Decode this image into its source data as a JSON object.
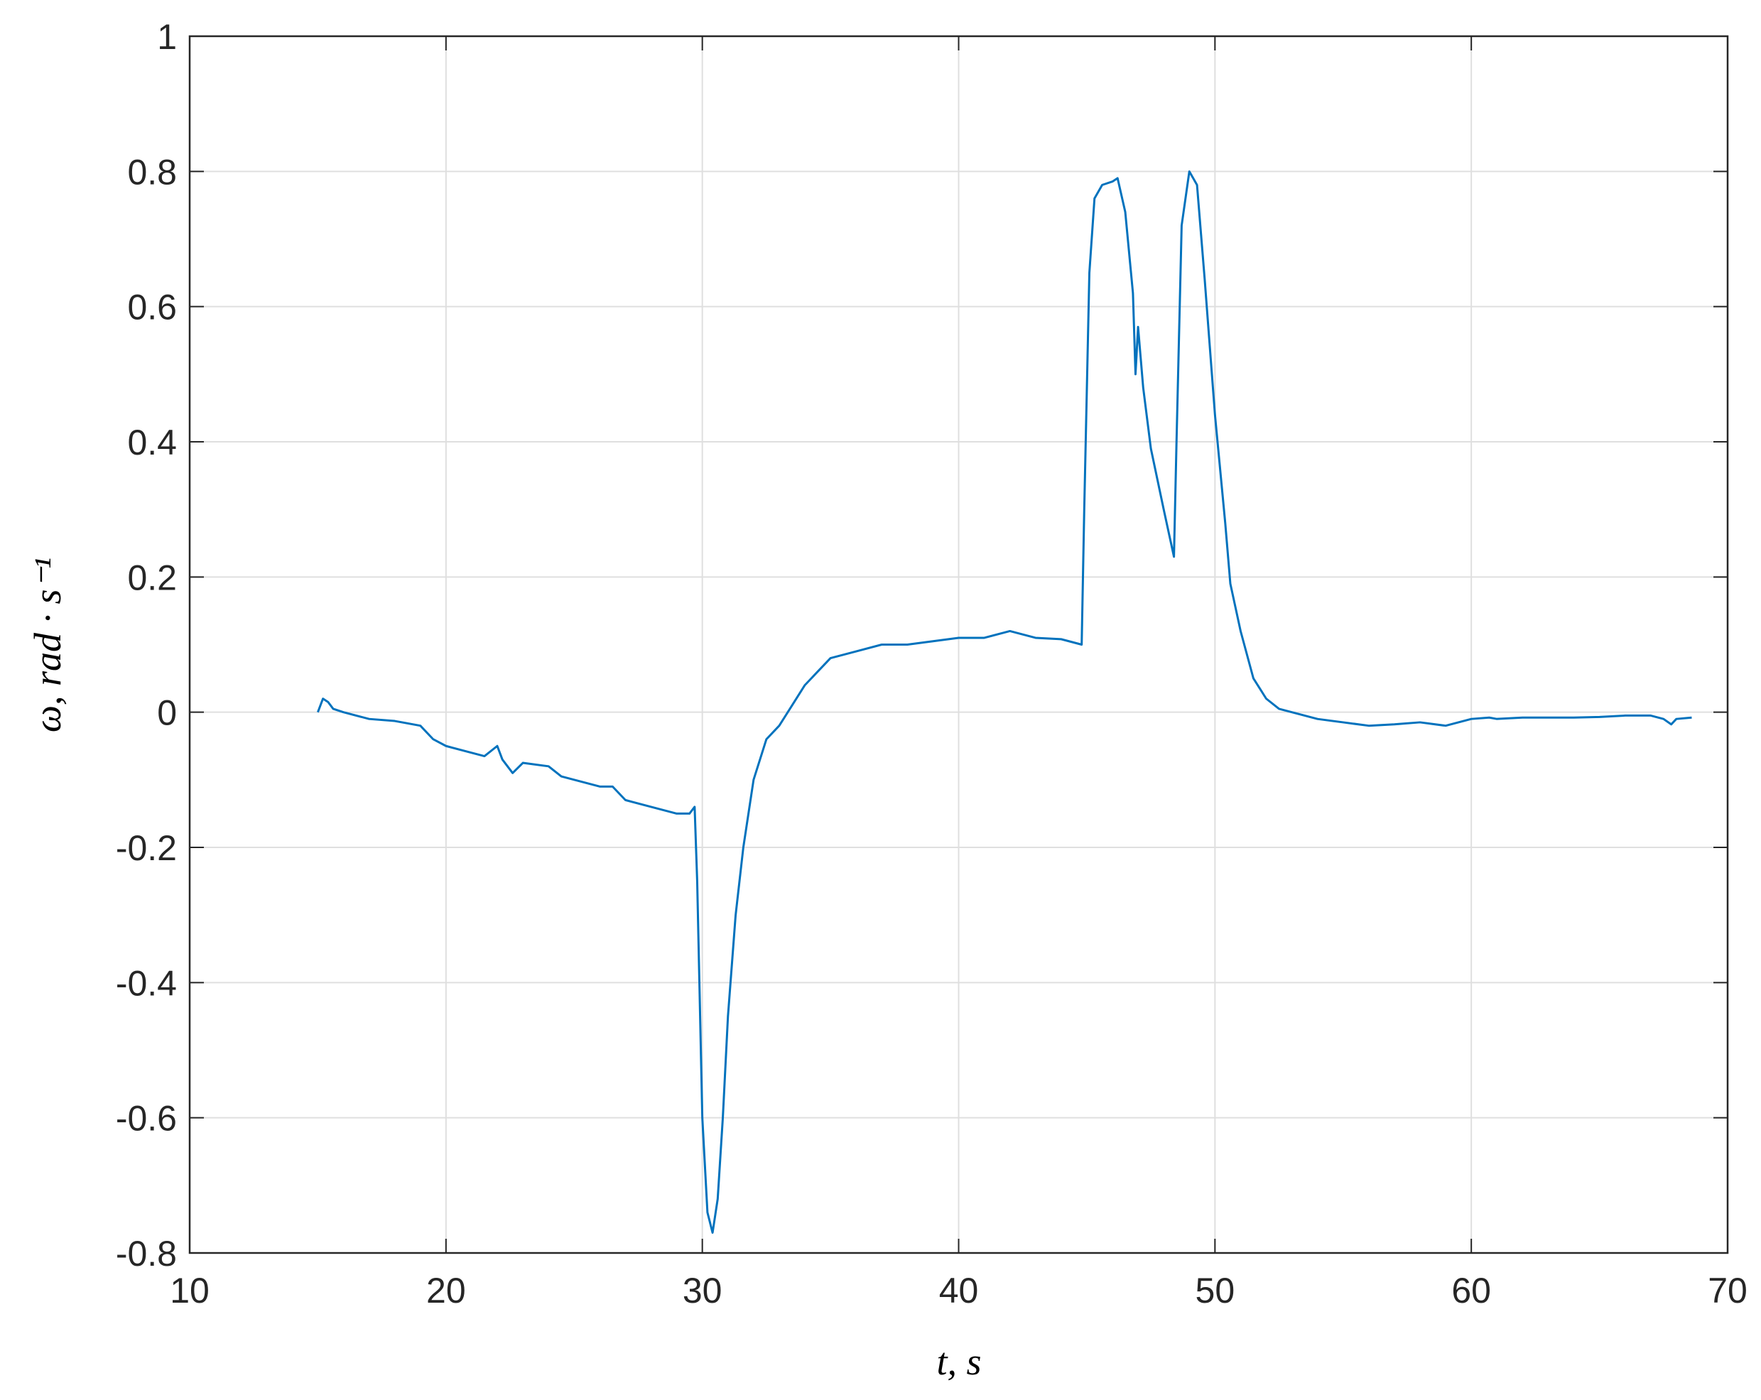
{
  "chart_data": {
    "type": "line",
    "xlabel": "t, s",
    "ylabel": "ω, rad · s⁻¹",
    "xlim": [
      10,
      70
    ],
    "xticks": [
      10,
      20,
      30,
      40,
      50,
      60,
      70
    ],
    "ylim": [
      -0.8,
      1
    ],
    "yticks": [
      -0.8,
      -0.6,
      -0.4,
      -0.2,
      0,
      0.2,
      0.4,
      0.6,
      0.8,
      1
    ],
    "grid": true,
    "series": [
      {
        "color": "#0072bd",
        "x": [
          15,
          15.2,
          15.4,
          15.6,
          16,
          17,
          18,
          19,
          19.5,
          20,
          21,
          21.5,
          22,
          22.2,
          22.6,
          23,
          24,
          24.5,
          25,
          26,
          26.5,
          27,
          28,
          29,
          29.5,
          29.7,
          29.8,
          30,
          30.2,
          30.4,
          30.6,
          30.8,
          31,
          31.3,
          31.6,
          32,
          32.5,
          33,
          33.5,
          34,
          34.5,
          35,
          36,
          37,
          38,
          39,
          40,
          41,
          42,
          43,
          44,
          44.8,
          44.9,
          45.1,
          45.3,
          45.6,
          46,
          46.2,
          46.5,
          46.8,
          46.9,
          47,
          47.2,
          47.5,
          48,
          48.4,
          48.5,
          48.7,
          49,
          49.3,
          49.6,
          50,
          50.4,
          50.6,
          51,
          51.5,
          52,
          52.5,
          53,
          54,
          55,
          56,
          57,
          58,
          59,
          60,
          60.7,
          61,
          62,
          63,
          64,
          65,
          66,
          67,
          67.5,
          67.8,
          68,
          68.6
        ],
        "values": [
          0,
          0.02,
          0.015,
          0.005,
          0,
          -0.01,
          -0.013,
          -0.02,
          -0.04,
          -0.05,
          -0.06,
          -0.065,
          -0.05,
          -0.07,
          -0.09,
          -0.075,
          -0.08,
          -0.095,
          -0.1,
          -0.11,
          -0.11,
          -0.13,
          -0.14,
          -0.15,
          -0.15,
          -0.14,
          -0.25,
          -0.6,
          -0.74,
          -0.77,
          -0.72,
          -0.6,
          -0.45,
          -0.3,
          -0.2,
          -0.1,
          -0.04,
          -0.02,
          0.01,
          0.04,
          0.06,
          0.08,
          0.09,
          0.1,
          0.1,
          0.105,
          0.11,
          0.11,
          0.12,
          0.11,
          0.108,
          0.1,
          0.3,
          0.65,
          0.76,
          0.78,
          0.785,
          0.79,
          0.74,
          0.62,
          0.5,
          0.57,
          0.48,
          0.39,
          0.3,
          0.23,
          0.4,
          0.72,
          0.8,
          0.78,
          0.64,
          0.44,
          0.28,
          0.19,
          0.12,
          0.05,
          0.02,
          0.005,
          0,
          -0.01,
          -0.015,
          -0.02,
          -0.018,
          -0.015,
          -0.02,
          -0.01,
          -0.008,
          -0.01,
          -0.008,
          -0.008,
          -0.008,
          -0.007,
          -0.005,
          -0.005,
          -0.01,
          -0.018,
          -0.01,
          -0.008
        ]
      }
    ]
  }
}
